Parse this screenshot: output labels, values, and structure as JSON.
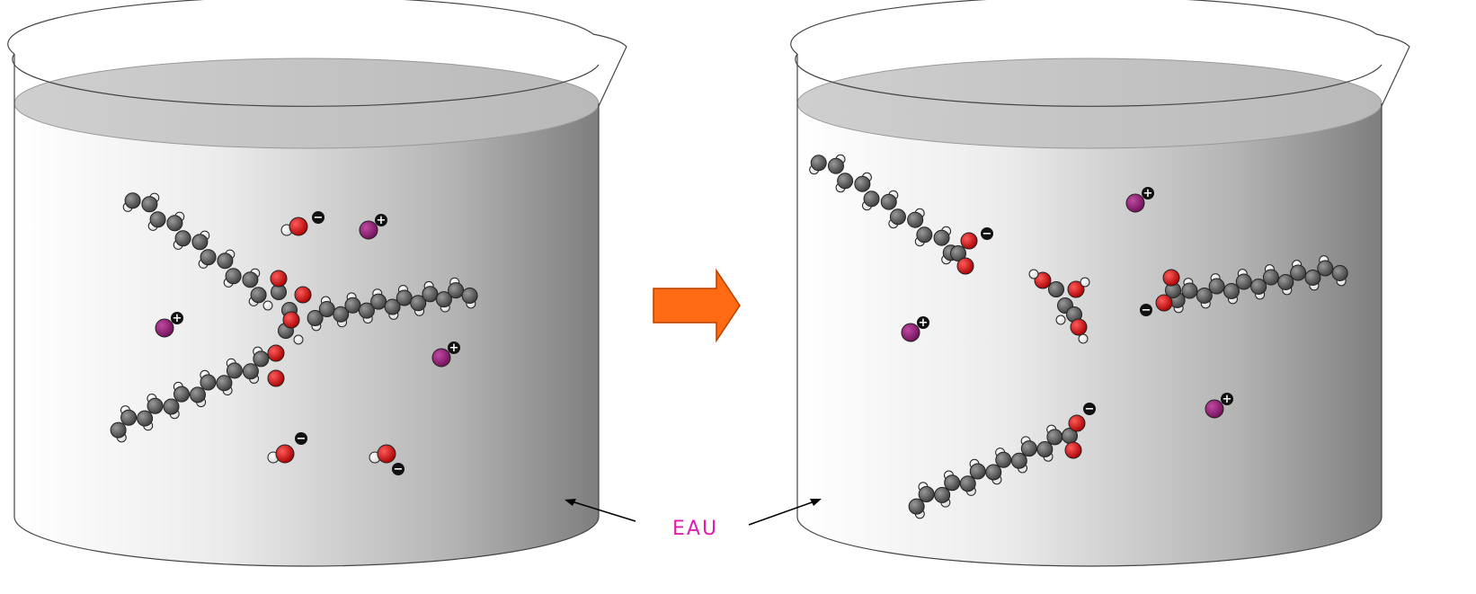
{
  "label": "EAU",
  "colors": {
    "carbon": "#555555",
    "hydrogen": "#ffffff",
    "oxygen": "#cc1111",
    "cation": "#8a1a6e",
    "arrow": "#ff6a13",
    "label": "#e01fb0"
  },
  "icons": {
    "reaction_arrow": "right-arrow",
    "cation": "sodium-ion",
    "anion": "hydroxide-ion"
  },
  "signs": {
    "plus": "+",
    "minus": "−"
  }
}
